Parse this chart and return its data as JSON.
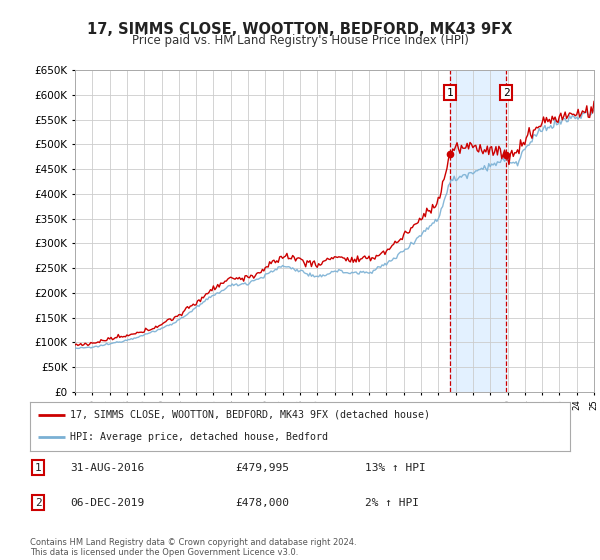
{
  "title": "17, SIMMS CLOSE, WOOTTON, BEDFORD, MK43 9FX",
  "subtitle": "Price paid vs. HM Land Registry's House Price Index (HPI)",
  "x_start_year": 1995,
  "x_end_year": 2025,
  "y_min": 0,
  "y_max": 650000,
  "y_tick_step": 50000,
  "sale1_date": 2016.67,
  "sale1_price": 479995,
  "sale2_date": 2019.92,
  "sale2_price": 478000,
  "sale1_label": "1",
  "sale2_label": "2",
  "legend_property": "17, SIMMS CLOSE, WOOTTON, BEDFORD, MK43 9FX (detached house)",
  "legend_hpi": "HPI: Average price, detached house, Bedford",
  "footer": "Contains HM Land Registry data © Crown copyright and database right 2024.\nThis data is licensed under the Open Government Licence v3.0.",
  "line_color_property": "#cc0000",
  "line_color_hpi": "#7ab0d4",
  "shade_color": "#ddeeff",
  "vline_color": "#cc0000",
  "grid_color": "#cccccc",
  "bg_color": "#ffffff",
  "plot_bg_color": "#ffffff",
  "hpi_keypoints": [
    [
      1995.0,
      88000
    ],
    [
      1996.0,
      90000
    ],
    [
      1997.0,
      97000
    ],
    [
      1998.0,
      105000
    ],
    [
      1999.0,
      115000
    ],
    [
      2000.0,
      128000
    ],
    [
      2001.0,
      145000
    ],
    [
      2002.0,
      170000
    ],
    [
      2003.0,
      195000
    ],
    [
      2004.0,
      215000
    ],
    [
      2005.0,
      220000
    ],
    [
      2006.0,
      235000
    ],
    [
      2007.0,
      255000
    ],
    [
      2008.0,
      245000
    ],
    [
      2009.0,
      230000
    ],
    [
      2010.0,
      245000
    ],
    [
      2011.0,
      240000
    ],
    [
      2012.0,
      242000
    ],
    [
      2013.0,
      258000
    ],
    [
      2014.0,
      285000
    ],
    [
      2015.0,
      318000
    ],
    [
      2016.0,
      350000
    ],
    [
      2016.67,
      425000
    ],
    [
      2017.0,
      430000
    ],
    [
      2018.0,
      445000
    ],
    [
      2019.0,
      458000
    ],
    [
      2019.92,
      468000
    ],
    [
      2020.5,
      460000
    ],
    [
      2021.0,
      490000
    ],
    [
      2022.0,
      530000
    ],
    [
      2023.0,
      545000
    ],
    [
      2024.0,
      555000
    ],
    [
      2025.0,
      565000
    ]
  ],
  "prop_keypoints": [
    [
      1995.0,
      95000
    ],
    [
      1996.0,
      98000
    ],
    [
      1997.0,
      107000
    ],
    [
      1998.0,
      113000
    ],
    [
      1999.0,
      122000
    ],
    [
      2000.0,
      137000
    ],
    [
      2001.0,
      155000
    ],
    [
      2002.0,
      180000
    ],
    [
      2003.0,
      210000
    ],
    [
      2004.0,
      230000
    ],
    [
      2005.0,
      230000
    ],
    [
      2006.0,
      248000
    ],
    [
      2007.0,
      275000
    ],
    [
      2008.0,
      268000
    ],
    [
      2009.0,
      255000
    ],
    [
      2010.0,
      275000
    ],
    [
      2011.0,
      265000
    ],
    [
      2012.0,
      268000
    ],
    [
      2013.0,
      285000
    ],
    [
      2014.0,
      315000
    ],
    [
      2015.0,
      350000
    ],
    [
      2016.0,
      385000
    ],
    [
      2016.67,
      479995
    ],
    [
      2017.0,
      490000
    ],
    [
      2018.0,
      495000
    ],
    [
      2019.0,
      490000
    ],
    [
      2019.92,
      478000
    ],
    [
      2020.5,
      480000
    ],
    [
      2021.0,
      510000
    ],
    [
      2022.0,
      545000
    ],
    [
      2023.0,
      555000
    ],
    [
      2024.0,
      560000
    ],
    [
      2025.0,
      570000
    ]
  ]
}
